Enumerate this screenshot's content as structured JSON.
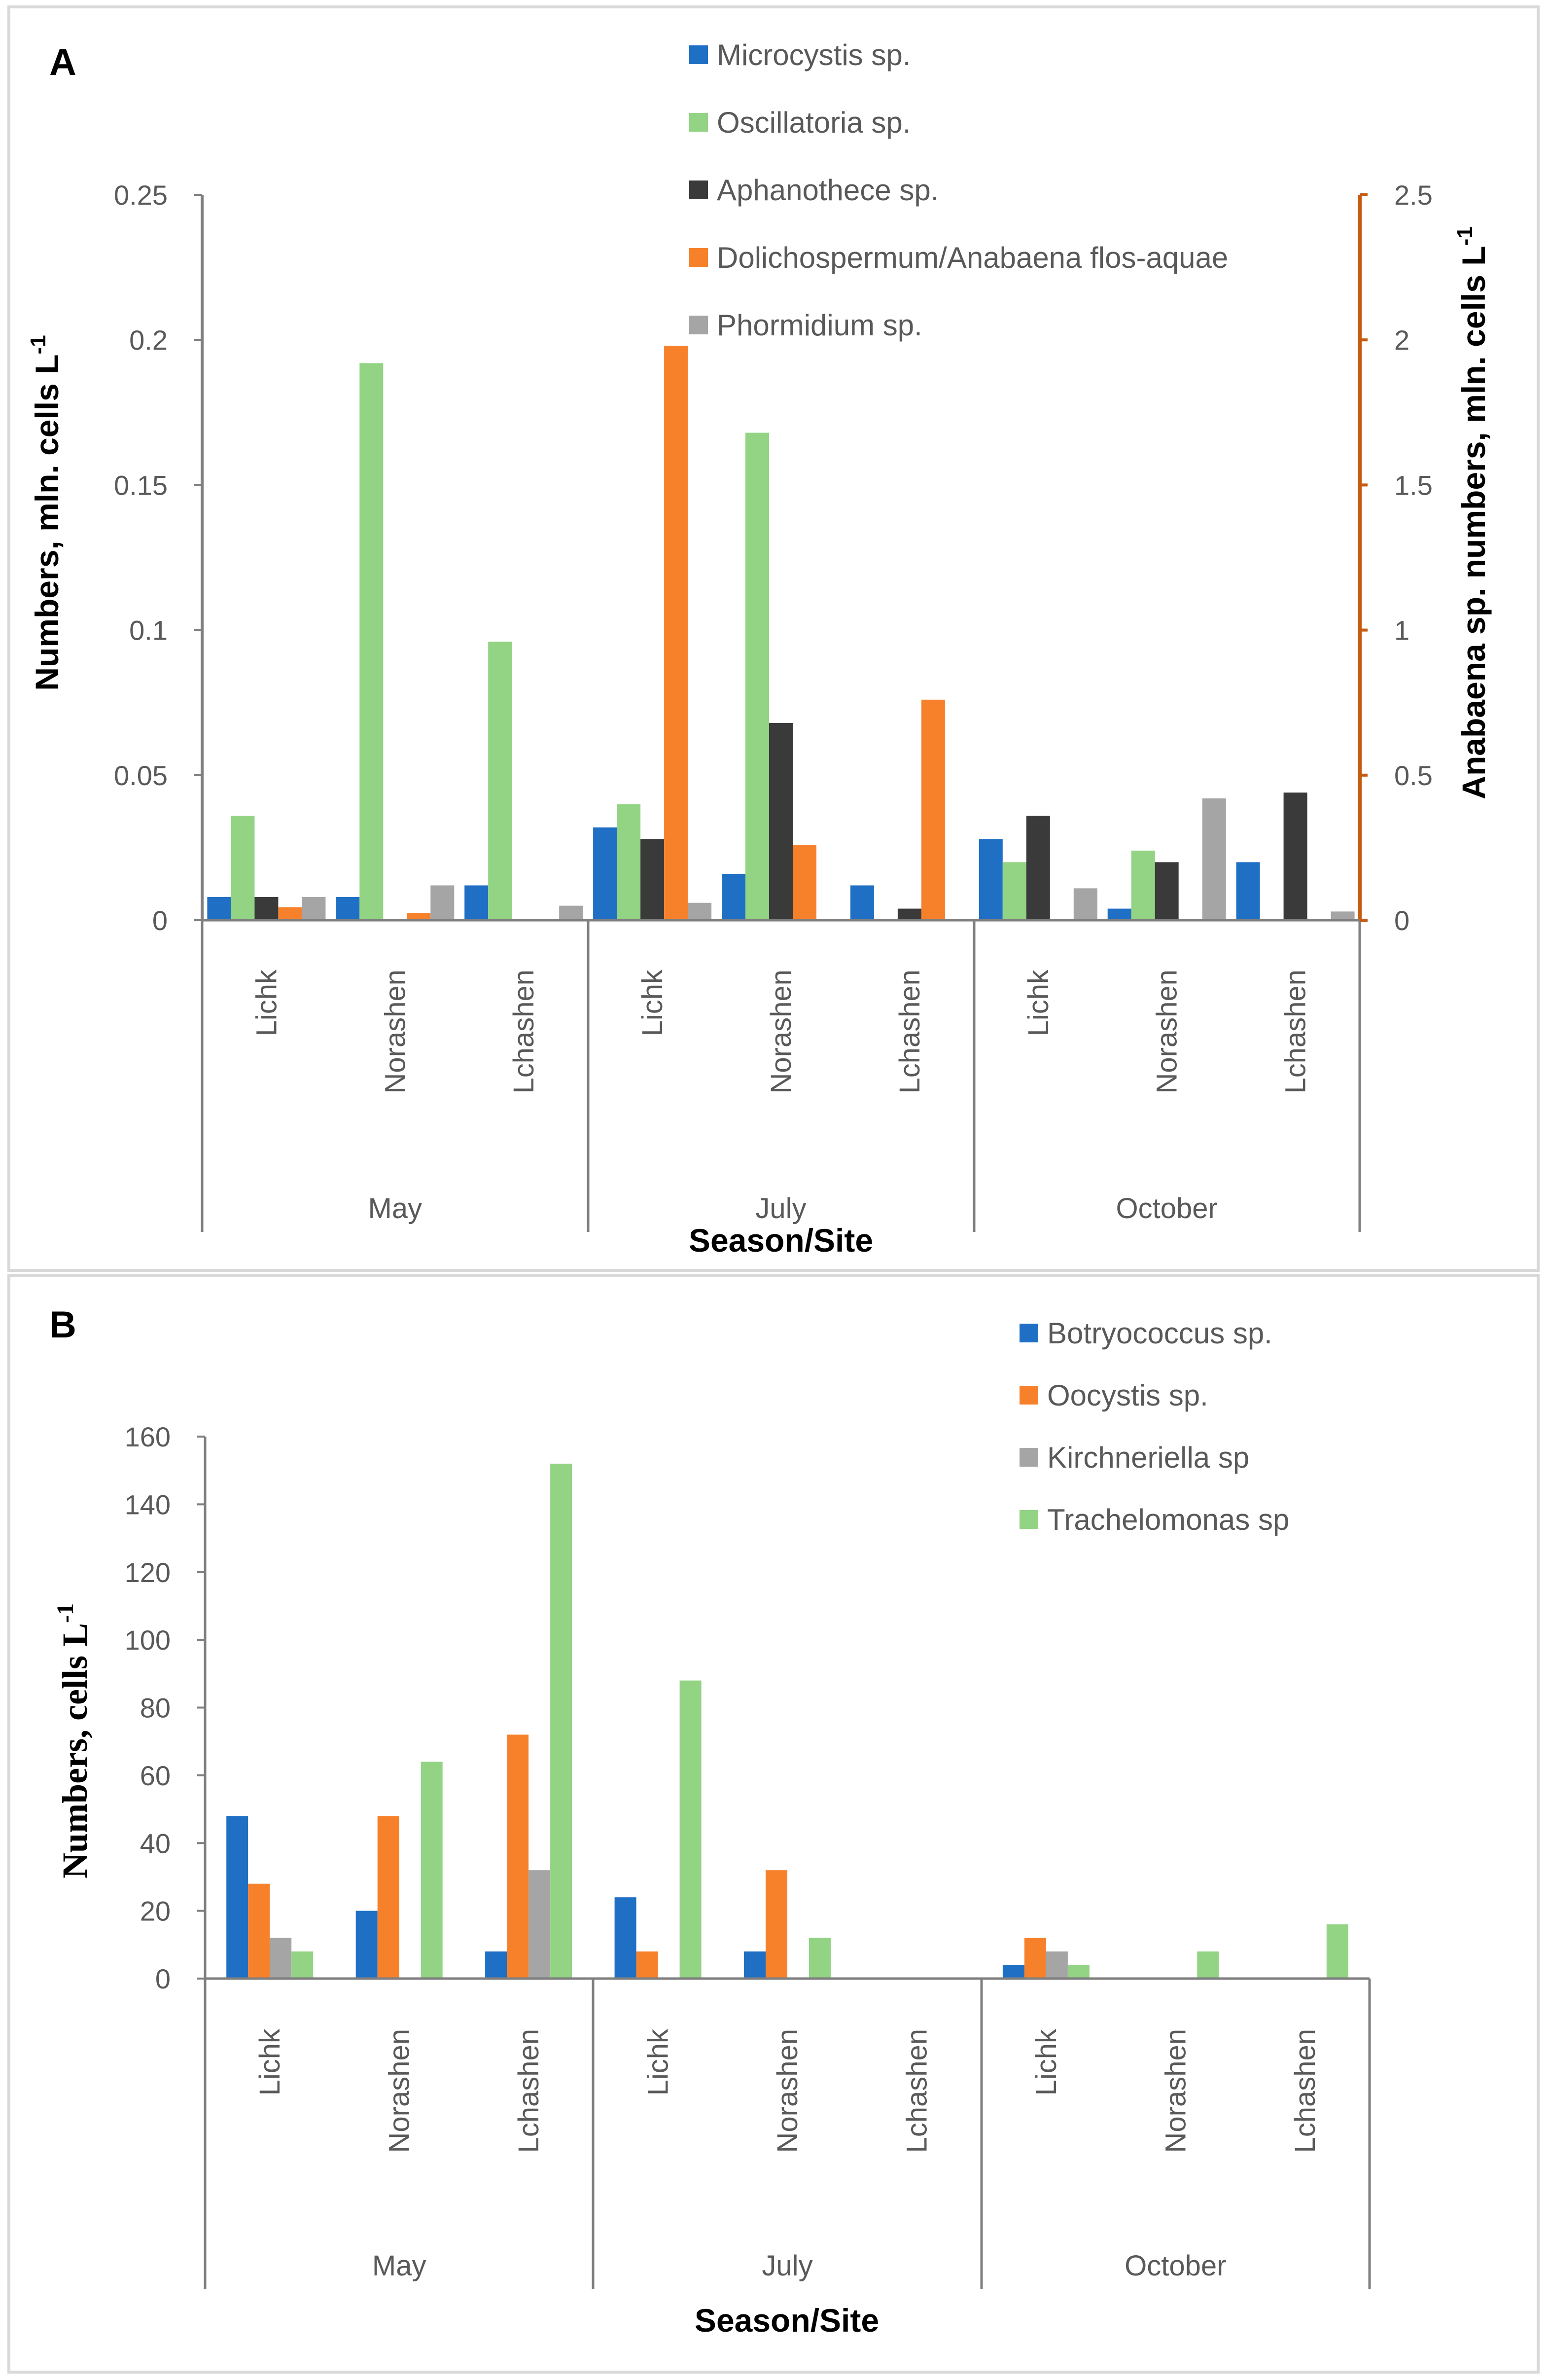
{
  "chart_data": [
    {
      "panel": "A",
      "type": "bar",
      "groups": [
        {
          "label": "May",
          "sites": [
            "Lichk",
            "Norashen",
            "Lchashen"
          ]
        },
        {
          "label": "July",
          "sites": [
            "Lichk",
            "Norashen",
            "Lchashen"
          ]
        },
        {
          "label": "October",
          "sites": [
            "Lichk",
            "Norashen",
            "Lchashen"
          ]
        }
      ],
      "xlabel": "Season/Site",
      "ylabel": "Numbers, mln. cells L",
      "ylabel_sup": "-1",
      "y2label": "Anabaena sp. numbers, mln. cells L",
      "y2label_sup": "-1",
      "ylim": [
        0,
        0.25
      ],
      "yticks": [
        "0",
        "0.05",
        "0.1",
        "0.15",
        "0.2",
        "0.25"
      ],
      "y2lim": [
        0,
        2.5
      ],
      "y2ticks": [
        "0",
        "0.5",
        "1",
        "1.5",
        "2",
        "2.5"
      ],
      "series": [
        {
          "name": "Microcystis sp.",
          "color": "#1f6fc5",
          "axis": "left",
          "values": [
            0.008,
            0.008,
            0.012,
            0.032,
            0.016,
            0.012,
            0.028,
            0.004,
            0.02
          ]
        },
        {
          "name": "Oscillatoria sp.",
          "color": "#92d384",
          "axis": "left",
          "values": [
            0.036,
            0.192,
            0.096,
            0.04,
            0.168,
            0,
            0.02,
            0.024,
            0
          ]
        },
        {
          "name": "Aphanothece sp.",
          "color": "#3a3a3a",
          "axis": "left",
          "values": [
            0.008,
            0,
            0,
            0.028,
            0.068,
            0.004,
            0.036,
            0.02,
            0.044
          ]
        },
        {
          "name": "Dolichospermum/Anabaena flos-aquae",
          "color": "#f7812b",
          "axis": "right",
          "values": [
            0.045,
            0.025,
            0,
            1.98,
            0.26,
            0.76,
            0,
            0,
            0
          ]
        },
        {
          "name": "Phormidium sp.",
          "color": "#a5a5a5",
          "axis": "left",
          "values": [
            0.008,
            0.012,
            0.005,
            0.006,
            0,
            0,
            0.011,
            0.042,
            0.003
          ]
        }
      ]
    },
    {
      "panel": "B",
      "type": "bar",
      "groups": [
        {
          "label": "May",
          "sites": [
            "Lichk",
            "Norashen",
            "Lchashen"
          ]
        },
        {
          "label": "July",
          "sites": [
            "Lichk",
            "Norashen",
            "Lchashen"
          ]
        },
        {
          "label": "October",
          "sites": [
            "Lichk",
            "Norashen",
            "Lchashen"
          ]
        }
      ],
      "xlabel": "Season/Site",
      "ylabel": "Numbers, cells L",
      "ylabel_sup": "-1",
      "ylim": [
        0,
        160
      ],
      "yticks": [
        "0",
        "20",
        "40",
        "60",
        "80",
        "100",
        "120",
        "140",
        "160"
      ],
      "series": [
        {
          "name": "Botryococcus sp.",
          "color": "#1f6fc5",
          "values": [
            48,
            20,
            8,
            24,
            8,
            0,
            4,
            0,
            0
          ]
        },
        {
          "name": "Oocystis sp.",
          "color": "#f7812b",
          "values": [
            28,
            48,
            72,
            8,
            32,
            0,
            12,
            0,
            0
          ]
        },
        {
          "name": "Kirchneriella sp",
          "color": "#a5a5a5",
          "values": [
            12,
            0,
            32,
            0,
            0,
            0,
            8,
            0,
            0
          ]
        },
        {
          "name": "Trachelomonas sp",
          "color": "#92d384",
          "values": [
            8,
            64,
            152,
            88,
            12,
            0,
            4,
            8,
            16
          ]
        }
      ]
    }
  ]
}
